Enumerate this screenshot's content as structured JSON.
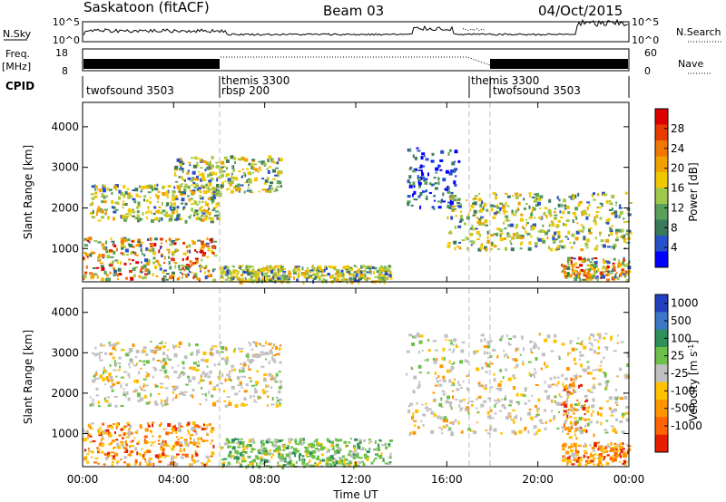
{
  "header": {
    "station": "Saskatoon (fitACF)",
    "beam": "Beam 03",
    "date": "04/Oct/2015"
  },
  "noise_panel": {
    "left_label": "N.Sky",
    "left_ticks": [
      "10^5",
      "10^0"
    ],
    "right_ticks": [
      "10^5",
      "10^0"
    ],
    "right_label": "N.Search"
  },
  "freq_panel": {
    "left_label_1": "Freq.",
    "left_label_2": "[MHz]",
    "left_ticks": [
      "18",
      "8"
    ],
    "right_ticks": [
      "60",
      "0"
    ],
    "right_label": "Nave"
  },
  "cpid": {
    "label": "CPID",
    "segments": [
      "twofsound 3503",
      "themis 3300",
      "rbsp 200",
      "themis 3300",
      "twofsound 3503"
    ]
  },
  "time_axis": {
    "title": "Time UT",
    "ticks": [
      "00:00",
      "04:00",
      "08:00",
      "12:00",
      "16:00",
      "20:00",
      "00:00"
    ]
  },
  "colors": {
    "power_scale": [
      "#0000ff",
      "#2850c8",
      "#3a7a5a",
      "#5aa05a",
      "#a0c84a",
      "#f0c800",
      "#f0a000",
      "#f07800",
      "#e63c00",
      "#dc0000"
    ],
    "velocity_scale": [
      "#2040c0",
      "#3c78c8",
      "#2f8f5a",
      "#6cc04a",
      "#c0c0c0",
      "#ffc200",
      "#ff9600",
      "#ff6400",
      "#e61e00"
    ]
  },
  "chart_data": [
    {
      "type": "heatmap",
      "panel": "power",
      "ylabel": "Slant Range [km]",
      "yticks": [
        1000,
        2000,
        3000,
        4000
      ],
      "ylim": [
        180,
        4600
      ],
      "xlim": [
        0,
        24
      ],
      "colorbar_label": "Power [dB]",
      "colorbar_ticks": [
        "28",
        "24",
        "20",
        "16",
        "12",
        "8",
        "4"
      ],
      "features": [
        {
          "t0": 0.0,
          "t1": 5.8,
          "r0": 250,
          "r1": 1300,
          "level": "high"
        },
        {
          "t0": 0.3,
          "t1": 6.0,
          "r0": 1700,
          "r1": 2600,
          "level": "mid"
        },
        {
          "t0": 4.0,
          "t1": 8.7,
          "r0": 2400,
          "r1": 3300,
          "level": "mid"
        },
        {
          "t0": 6.0,
          "t1": 13.5,
          "r0": 200,
          "r1": 600,
          "level": "mid"
        },
        {
          "t0": 14.2,
          "t1": 16.5,
          "r0": 2000,
          "r1": 3500,
          "level": "low"
        },
        {
          "t0": 16.0,
          "t1": 24.0,
          "r0": 1000,
          "r1": 2400,
          "level": "mid"
        },
        {
          "t0": 21.0,
          "t1": 24.0,
          "r0": 250,
          "r1": 800,
          "level": "high"
        }
      ]
    },
    {
      "type": "heatmap",
      "panel": "velocity",
      "ylabel": "Slant Range [km]",
      "yticks": [
        1000,
        2000,
        3000,
        4000
      ],
      "ylim": [
        180,
        4600
      ],
      "xlim": [
        0,
        24
      ],
      "colorbar_label": "Velocity [m s",
      "colorbar_label_sup": "-1",
      "colorbar_label_end": "]",
      "colorbar_ticks": [
        "1000",
        "500",
        "100",
        "25",
        "-25",
        "-100",
        "-500",
        "-1000"
      ],
      "features": [
        {
          "t0": 0.0,
          "t1": 5.8,
          "r0": 250,
          "r1": 1300,
          "level": "negative"
        },
        {
          "t0": 0.3,
          "t1": 8.7,
          "r0": 1700,
          "r1": 3300,
          "level": "near-zero"
        },
        {
          "t0": 6.0,
          "t1": 13.5,
          "r0": 200,
          "r1": 900,
          "level": "positive"
        },
        {
          "t0": 14.2,
          "t1": 24.0,
          "r0": 1000,
          "r1": 3500,
          "level": "near-zero"
        },
        {
          "t0": 21.0,
          "t1": 22.2,
          "r0": 900,
          "r1": 2400,
          "level": "negative"
        },
        {
          "t0": 21.0,
          "t1": 24.0,
          "r0": 250,
          "r1": 800,
          "level": "negative"
        }
      ]
    }
  ]
}
